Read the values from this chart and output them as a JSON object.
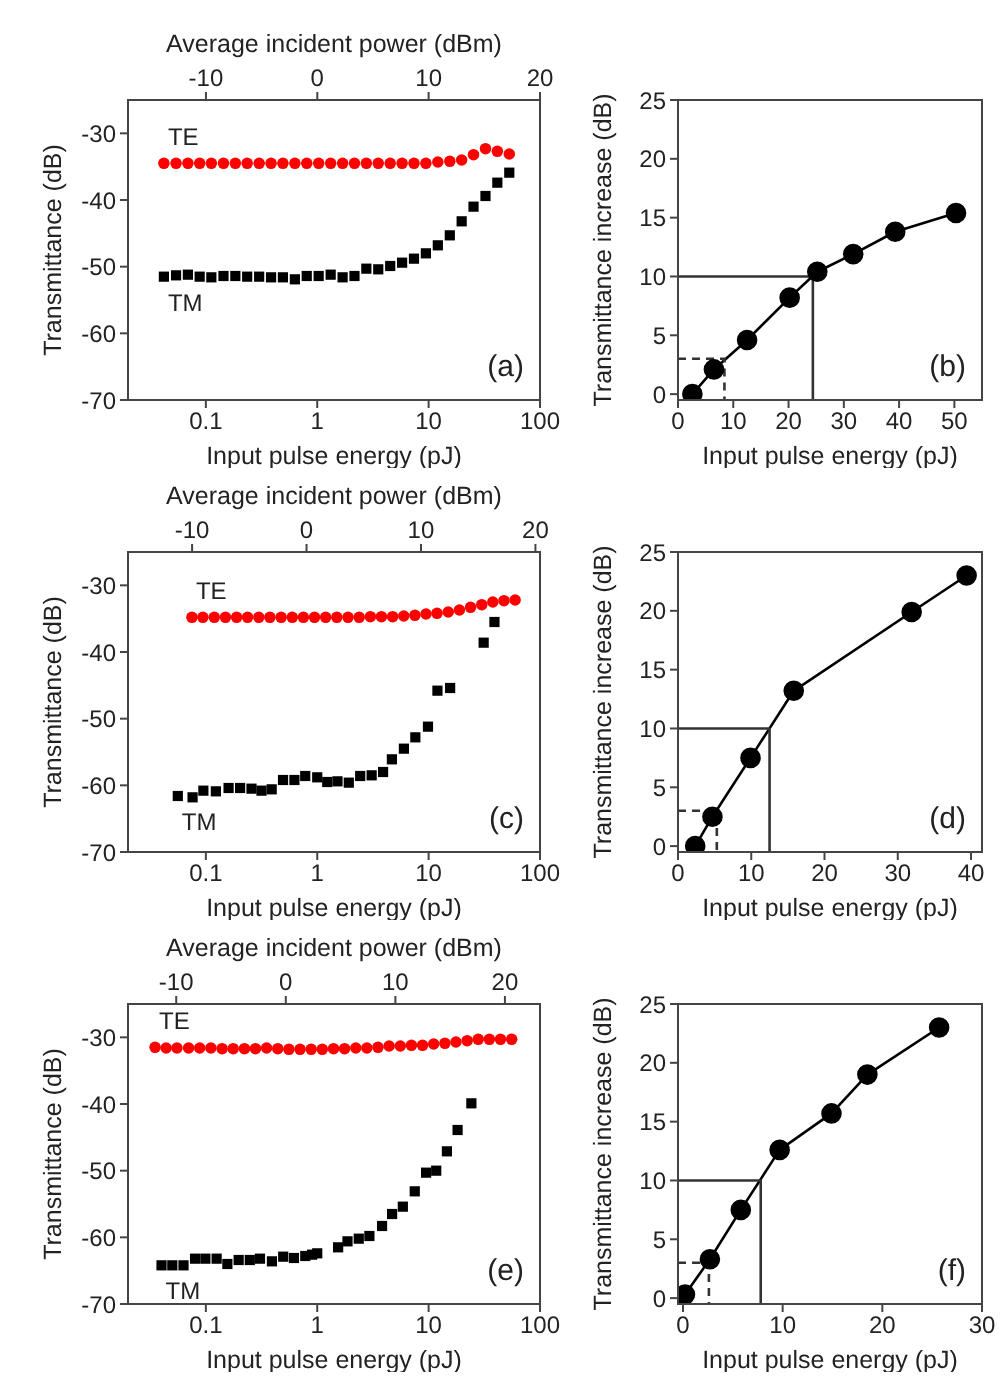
{
  "chart_data": [
    {
      "type": "scatter",
      "xlabel": "Input pulse energy (pJ)",
      "x2label": "Average incident power (dBm)",
      "ylabel": "Transmittance (dB)",
      "log": "x",
      "xlim": [
        0.02,
        100
      ],
      "xticks": [
        0.1,
        1,
        10,
        100
      ],
      "x2lim": [
        -17,
        20
      ],
      "x2ticks": [
        -10,
        0,
        10,
        20
      ],
      "ylim": [
        -70,
        -25
      ],
      "yticks": [
        -70,
        -60,
        -50,
        -40,
        -30
      ],
      "annotations": [
        "(a)"
      ],
      "series": [
        {
          "name": "TE",
          "color": "#ff0000",
          "marker": "circle",
          "x": [
            0.042,
            0.054,
            0.069,
            0.088,
            0.112,
            0.144,
            0.184,
            0.235,
            0.301,
            0.385,
            0.492,
            0.63,
            0.805,
            1.03,
            1.32,
            1.69,
            2.16,
            2.76,
            3.53,
            4.52,
            5.78,
            7.39,
            9.45,
            12.1,
            15.5,
            19.8,
            25.3,
            32.4,
            41.4,
            53
          ],
          "values": [
            -34.5,
            -34.5,
            -34.5,
            -34.5,
            -34.5,
            -34.5,
            -34.5,
            -34.5,
            -34.5,
            -34.5,
            -34.5,
            -34.5,
            -34.5,
            -34.5,
            -34.5,
            -34.5,
            -34.5,
            -34.5,
            -34.5,
            -34.5,
            -34.5,
            -34.5,
            -34.5,
            -34.3,
            -34.2,
            -34,
            -33.2,
            -32.3,
            -32.7,
            -33.1
          ]
        },
        {
          "name": "TM",
          "color": "#000000",
          "marker": "square",
          "x": [
            0.042,
            0.054,
            0.069,
            0.088,
            0.112,
            0.144,
            0.184,
            0.235,
            0.301,
            0.385,
            0.492,
            0.63,
            0.805,
            1.03,
            1.32,
            1.69,
            2.16,
            2.76,
            3.53,
            4.52,
            5.78,
            7.39,
            9.45,
            12.1,
            15.5,
            19.8,
            25.3,
            32.4,
            41.4,
            53
          ],
          "values": [
            -51.5,
            -51.3,
            -51.2,
            -51.5,
            -51.6,
            -51.4,
            -51.4,
            -51.5,
            -51.5,
            -51.6,
            -51.6,
            -51.9,
            -51.4,
            -51.4,
            -51.2,
            -51.6,
            -51.4,
            -50.3,
            -50.4,
            -49.9,
            -49.4,
            -48.8,
            -48,
            -46.8,
            -45.3,
            -43.2,
            -41,
            -39.4,
            -37.4,
            -35.9
          ]
        }
      ]
    },
    {
      "type": "line",
      "xlabel": "Input pulse energy (pJ)",
      "ylabel": "Transmittance increase (dB)",
      "xlim": [
        0,
        55
      ],
      "xticks": [
        0,
        10,
        20,
        30,
        40,
        50
      ],
      "ylim": [
        -0.5,
        25
      ],
      "yticks": [
        0,
        5,
        10,
        15,
        20,
        25
      ],
      "marker": "circle",
      "annotations": [
        "(b)"
      ],
      "series": [
        {
          "color": "#000000",
          "x": [
            2.6,
            6.5,
            12.5,
            20.2,
            25.2,
            31.7,
            39.3,
            50.3
          ],
          "values": [
            0,
            2.1,
            4.6,
            8.2,
            10.4,
            11.9,
            13.8,
            15.4
          ]
        },
        {
          "color": "#333333",
          "marker": "none",
          "line_style": "solid",
          "x": [
            0,
            24.4,
            24.4
          ],
          "values": [
            10,
            10,
            -0.5
          ]
        },
        {
          "color": "#333333",
          "marker": "none",
          "line_style": "dashed",
          "x": [
            0,
            8.4,
            8.4
          ],
          "values": [
            3,
            3,
            -0.5
          ]
        }
      ]
    },
    {
      "type": "scatter",
      "xlabel": "Input pulse energy (pJ)",
      "x2label": "Average incident power (dBm)",
      "ylabel": "Transmittance (dB)",
      "log": "x",
      "xlim": [
        0.02,
        100
      ],
      "xticks": [
        0.1,
        1,
        10,
        100
      ],
      "x2lim": [
        -15.6,
        20.4
      ],
      "x2ticks": [
        -10,
        0,
        10,
        20
      ],
      "ylim": [
        -70,
        -25
      ],
      "yticks": [
        -70,
        -60,
        -50,
        -40,
        -30
      ],
      "annotations": [
        "(c)"
      ],
      "series": [
        {
          "name": "TE",
          "color": "#ff0000",
          "marker": "circle",
          "x": [
            0.075,
            0.094,
            0.119,
            0.15,
            0.189,
            0.237,
            0.299,
            0.376,
            0.474,
            0.597,
            0.751,
            0.946,
            1.19,
            1.5,
            1.89,
            2.38,
            3,
            3.77,
            4.75,
            5.98,
            7.53,
            9.48,
            11.9,
            15,
            18.9,
            23.8,
            30,
            37.7,
            47.5,
            59.8
          ],
          "values": [
            -34.8,
            -34.8,
            -34.8,
            -34.8,
            -34.8,
            -34.8,
            -34.8,
            -34.8,
            -34.8,
            -34.8,
            -34.8,
            -34.8,
            -34.8,
            -34.8,
            -34.8,
            -34.8,
            -34.7,
            -34.7,
            -34.7,
            -34.6,
            -34.5,
            -34.3,
            -34.2,
            -34,
            -33.7,
            -33.3,
            -32.9,
            -32.5,
            -32.3,
            -32.2
          ]
        },
        {
          "name": "TM",
          "color": "#000000",
          "marker": "square",
          "x": [
            0.056,
            0.076,
            0.095,
            0.123,
            0.16,
            0.203,
            0.257,
            0.316,
            0.39,
            0.493,
            0.624,
            0.78,
            1,
            1.23,
            1.52,
            1.92,
            2.43,
            3.08,
            3.9,
            4.68,
            6,
            7.6,
            9.87,
            12,
            15.6,
            31.2,
            39
          ],
          "values": [
            -61.6,
            -61.8,
            -60.8,
            -60.9,
            -60.4,
            -60.4,
            -60.5,
            -60.8,
            -60.6,
            -59.2,
            -59.2,
            -58.6,
            -58.8,
            -59.5,
            -59.4,
            -59.6,
            -58.6,
            -58.5,
            -58,
            -56.1,
            -54.5,
            -52.8,
            -51.2,
            -45.8,
            -45.4,
            -38.6,
            -35.5
          ]
        }
      ]
    },
    {
      "type": "line",
      "xlabel": "Input pulse energy (pJ)",
      "ylabel": "Transmittance increase (dB)",
      "xlim": [
        0,
        41.5
      ],
      "xticks": [
        0,
        10,
        20,
        30,
        40
      ],
      "ylim": [
        -0.5,
        25
      ],
      "yticks": [
        0,
        5,
        10,
        15,
        20,
        25
      ],
      "marker": "circle",
      "annotations": [
        "(d)"
      ],
      "series": [
        {
          "color": "#000000",
          "x": [
            2.35,
            4.7,
            9.9,
            15.8,
            31.9,
            39.4
          ],
          "values": [
            0,
            2.5,
            7.5,
            13.2,
            19.9,
            23
          ]
        },
        {
          "color": "#333333",
          "marker": "none",
          "line_style": "solid",
          "x": [
            0,
            12.5,
            12.5
          ],
          "values": [
            10,
            10,
            -0.5
          ]
        },
        {
          "color": "#333333",
          "marker": "none",
          "line_style": "dashed",
          "x": [
            0,
            5.3,
            5.3
          ],
          "values": [
            3,
            3,
            -0.5
          ]
        }
      ]
    },
    {
      "type": "scatter",
      "xlabel": "Input pulse energy (pJ)",
      "x2label": "Average incident power (dBm)",
      "ylabel": "Transmittance (dB)",
      "log": "x",
      "xlim": [
        0.02,
        100
      ],
      "xticks": [
        0.1,
        1,
        10,
        100
      ],
      "x2lim": [
        -14.4,
        23.2
      ],
      "x2ticks": [
        -10,
        0,
        10,
        20
      ],
      "ylim": [
        -70,
        -25
      ],
      "yticks": [
        -70,
        -60,
        -50,
        -40,
        -30
      ],
      "annotations": [
        "(e)"
      ],
      "series": [
        {
          "name": "TE",
          "color": "#ff0000",
          "marker": "circle",
          "x": [
            0.035,
            0.044,
            0.055,
            0.07,
            0.088,
            0.111,
            0.14,
            0.176,
            0.222,
            0.279,
            0.351,
            0.442,
            0.557,
            0.701,
            0.882,
            1.11,
            1.4,
            1.76,
            2.22,
            2.79,
            3.51,
            4.42,
            5.57,
            7.01,
            8.82,
            11.1,
            14,
            17.6,
            22.2,
            27.9,
            35.1,
            44.2,
            55.7
          ],
          "values": [
            -31.5,
            -31.6,
            -31.6,
            -31.6,
            -31.6,
            -31.6,
            -31.7,
            -31.7,
            -31.7,
            -31.7,
            -31.6,
            -31.7,
            -31.8,
            -31.8,
            -31.8,
            -31.8,
            -31.7,
            -31.7,
            -31.6,
            -31.6,
            -31.5,
            -31.3,
            -31.3,
            -31.2,
            -31.2,
            -31,
            -30.9,
            -30.7,
            -30.5,
            -30.3,
            -30.3,
            -30.3,
            -30.3
          ]
        },
        {
          "name": "TM",
          "color": "#000000",
          "marker": "square",
          "x": [
            0.04,
            0.05,
            0.063,
            0.08,
            0.099,
            0.125,
            0.156,
            0.197,
            0.248,
            0.306,
            0.392,
            0.495,
            0.618,
            0.781,
            0.9,
            1,
            1.54,
            1.87,
            2.36,
            2.94,
            3.82,
            4.7,
            5.87,
            7.51,
            9.49,
            11.7,
            14.6,
            18.2,
            24.2
          ],
          "values": [
            -64.2,
            -64.2,
            -64.2,
            -63.2,
            -63.2,
            -63.2,
            -64,
            -63.4,
            -63.4,
            -63.2,
            -63.6,
            -62.9,
            -63.1,
            -62.8,
            -62.6,
            -62.4,
            -61.5,
            -60.6,
            -60.2,
            -59.8,
            -58.3,
            -56.5,
            -55.4,
            -53.1,
            -50.3,
            -50,
            -47.1,
            -43.9,
            -39.9
          ]
        }
      ]
    },
    {
      "type": "line",
      "xlabel": "Input pulse energy (pJ)",
      "ylabel": "Transmittance increase (dB)",
      "xlim": [
        -0.5,
        30
      ],
      "xticks": [
        0,
        10,
        20,
        30
      ],
      "ylim": [
        -0.5,
        25
      ],
      "yticks": [
        0,
        5,
        10,
        15,
        20,
        25
      ],
      "marker": "circle",
      "annotations": [
        "(f)"
      ],
      "series": [
        {
          "color": "#000000",
          "x": [
            0.2,
            2.7,
            5.8,
            9.7,
            14.9,
            18.5,
            25.7
          ],
          "values": [
            0.3,
            3.3,
            7.5,
            12.6,
            15.7,
            19,
            23
          ]
        },
        {
          "color": "#333333",
          "marker": "none",
          "line_style": "solid",
          "x": [
            -0.5,
            7.8,
            7.8
          ],
          "values": [
            10,
            10,
            -0.5
          ]
        },
        {
          "color": "#333333",
          "marker": "none",
          "line_style": "dashed",
          "x": [
            -0.5,
            2.6,
            2.6
          ],
          "values": [
            3,
            3,
            -0.5
          ]
        }
      ]
    }
  ]
}
